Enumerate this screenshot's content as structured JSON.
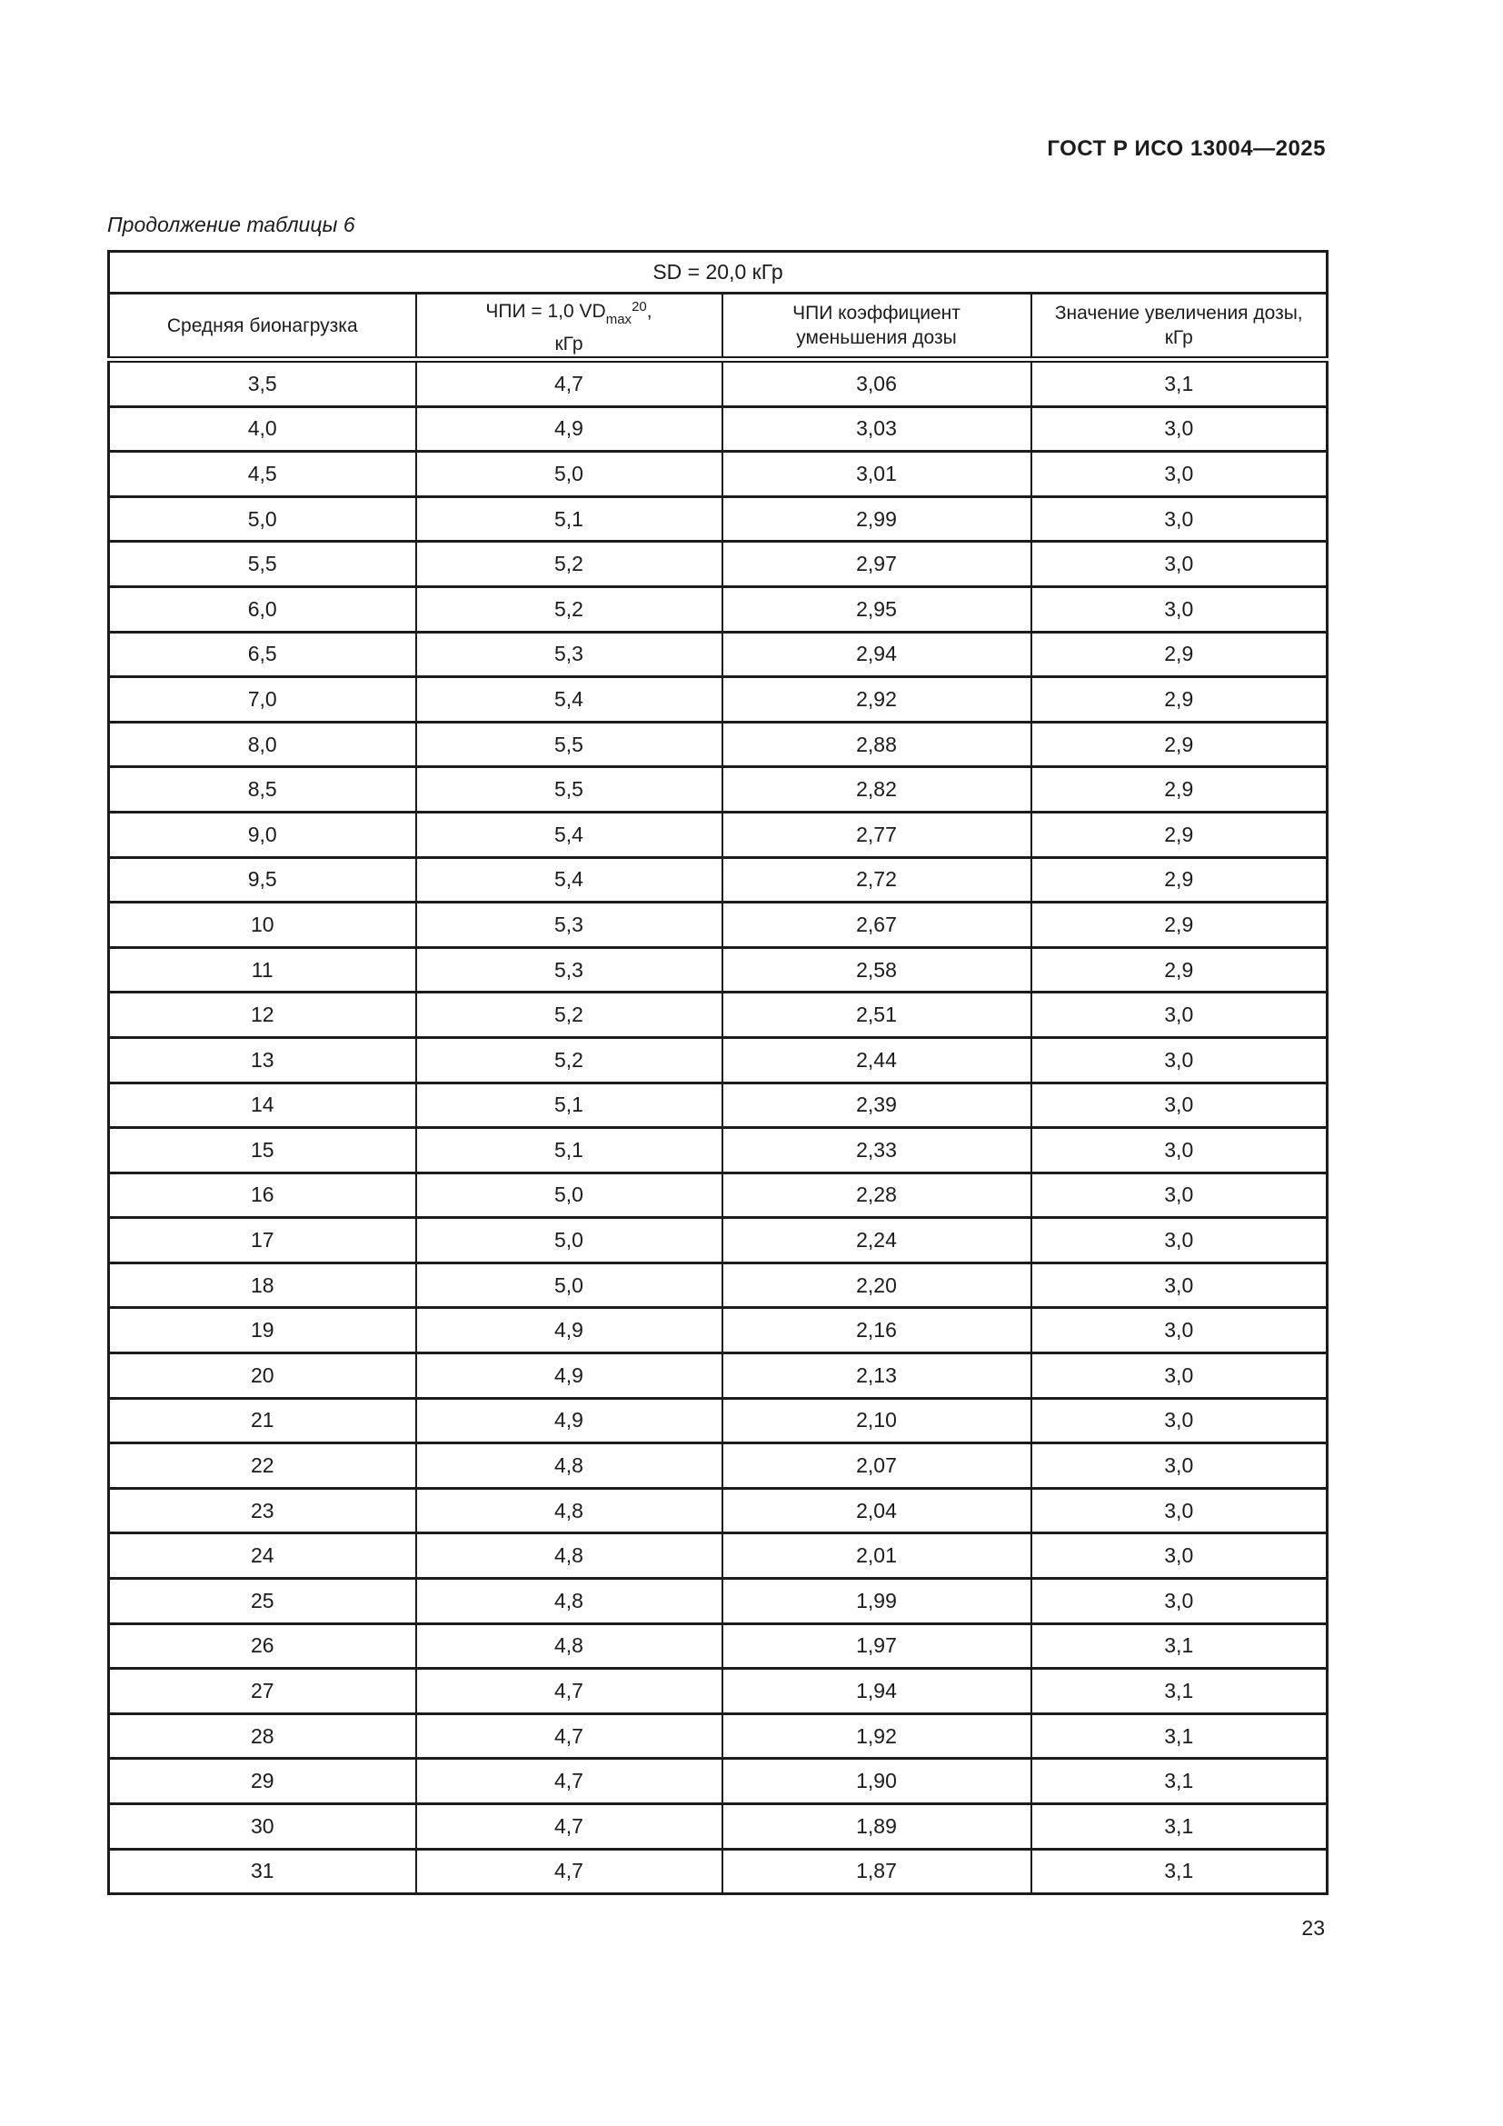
{
  "page": {
    "doc_header": "ГОСТ Р ИСО 13004—2025",
    "table_caption": "Продолжение таблицы 6",
    "page_number": "23"
  },
  "table": {
    "span_header": "SD = 20,0 кГр",
    "headers": {
      "col1": "Средняя бионагрузка",
      "col2_prefix": "ЧПИ = 1,0 VD",
      "col2_sub": "max",
      "col2_sup": "20",
      "col2_suffix": ",",
      "col2_line2": "кГр",
      "col3_line1": "ЧПИ коэффициент",
      "col3_line2": "уменьшения дозы",
      "col4_line1": "Значение увеличения дозы,",
      "col4_line2": "кГр"
    },
    "rows": [
      [
        "3,5",
        "4,7",
        "3,06",
        "3,1"
      ],
      [
        "4,0",
        "4,9",
        "3,03",
        "3,0"
      ],
      [
        "4,5",
        "5,0",
        "3,01",
        "3,0"
      ],
      [
        "5,0",
        "5,1",
        "2,99",
        "3,0"
      ],
      [
        "5,5",
        "5,2",
        "2,97",
        "3,0"
      ],
      [
        "6,0",
        "5,2",
        "2,95",
        "3,0"
      ],
      [
        "6,5",
        "5,3",
        "2,94",
        "2,9"
      ],
      [
        "7,0",
        "5,4",
        "2,92",
        "2,9"
      ],
      [
        "8,0",
        "5,5",
        "2,88",
        "2,9"
      ],
      [
        "8,5",
        "5,5",
        "2,82",
        "2,9"
      ],
      [
        "9,0",
        "5,4",
        "2,77",
        "2,9"
      ],
      [
        "9,5",
        "5,4",
        "2,72",
        "2,9"
      ],
      [
        "10",
        "5,3",
        "2,67",
        "2,9"
      ],
      [
        "11",
        "5,3",
        "2,58",
        "2,9"
      ],
      [
        "12",
        "5,2",
        "2,51",
        "3,0"
      ],
      [
        "13",
        "5,2",
        "2,44",
        "3,0"
      ],
      [
        "14",
        "5,1",
        "2,39",
        "3,0"
      ],
      [
        "15",
        "5,1",
        "2,33",
        "3,0"
      ],
      [
        "16",
        "5,0",
        "2,28",
        "3,0"
      ],
      [
        "17",
        "5,0",
        "2,24",
        "3,0"
      ],
      [
        "18",
        "5,0",
        "2,20",
        "3,0"
      ],
      [
        "19",
        "4,9",
        "2,16",
        "3,0"
      ],
      [
        "20",
        "4,9",
        "2,13",
        "3,0"
      ],
      [
        "21",
        "4,9",
        "2,10",
        "3,0"
      ],
      [
        "22",
        "4,8",
        "2,07",
        "3,0"
      ],
      [
        "23",
        "4,8",
        "2,04",
        "3,0"
      ],
      [
        "24",
        "4,8",
        "2,01",
        "3,0"
      ],
      [
        "25",
        "4,8",
        "1,99",
        "3,0"
      ],
      [
        "26",
        "4,8",
        "1,97",
        "3,1"
      ],
      [
        "27",
        "4,7",
        "1,94",
        "3,1"
      ],
      [
        "28",
        "4,7",
        "1,92",
        "3,1"
      ],
      [
        "29",
        "4,7",
        "1,90",
        "3,1"
      ],
      [
        "30",
        "4,7",
        "1,89",
        "3,1"
      ],
      [
        "31",
        "4,7",
        "1,87",
        "3,1"
      ]
    ]
  }
}
